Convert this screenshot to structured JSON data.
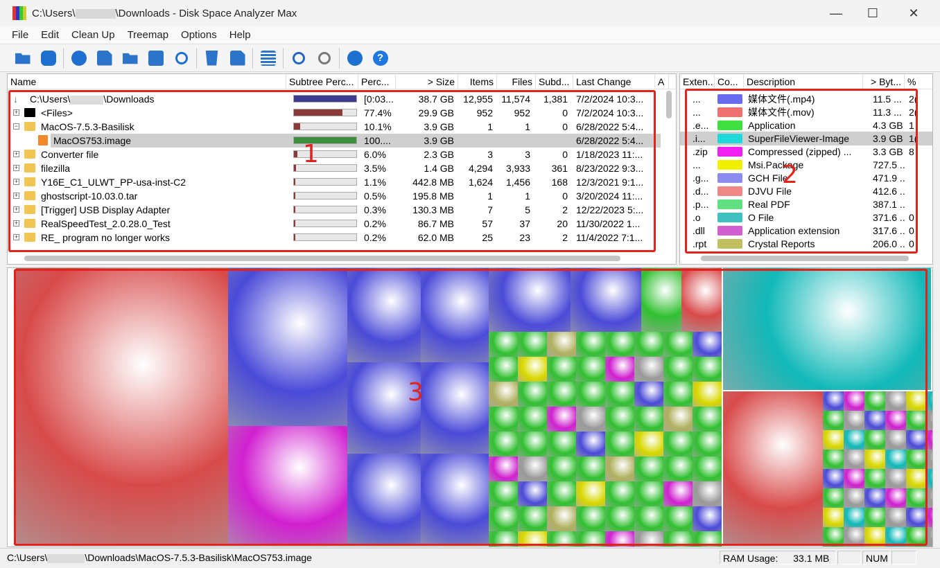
{
  "window": {
    "title_prefix": "C:\\Users\\",
    "title_suffix": "\\Downloads - Disk Space Analyzer Max",
    "minimize": "—",
    "maximize": "☐",
    "close": "✕"
  },
  "menu": [
    "File",
    "Edit",
    "Clean Up",
    "Treemap",
    "Options",
    "Help"
  ],
  "toolbar_icons": [
    "open-folder-icon",
    "refresh-icon",
    "play-icon",
    "copy-icon",
    "folder-search-icon",
    "console-icon",
    "reload-icon",
    "recycle-icon",
    "delete-file-icon",
    "list-icon",
    "zoom-in-icon",
    "zoom-out-icon",
    "like-icon",
    "help-icon"
  ],
  "tree": {
    "columns": [
      "Name",
      "Subtree Perc...",
      "Perc...",
      "> Size",
      "Items",
      "Files",
      "Subd...",
      "Last Change",
      "A"
    ],
    "rows": [
      {
        "name_prefix": "C:\\Users\\",
        "name_suffix": "\\Downloads",
        "perc": "[0:03...",
        "size": "38.7 GB",
        "items": "12,955",
        "files": "11,574",
        "subdirs": "1,381",
        "last": "7/2/2024  10:3...",
        "fill": 1.0,
        "fill_color": "#3b3b8f"
      },
      {
        "name": "<Files>",
        "perc": "77.4%",
        "size": "29.9 GB",
        "items": "952",
        "files": "952",
        "subdirs": "0",
        "last": "7/2/2024  10:3...",
        "fill": 0.774,
        "fill_color": "#8b3a3a"
      },
      {
        "name": "MacOS-7.5.3-Basilisk",
        "perc": "10.1%",
        "size": "3.9 GB",
        "items": "1",
        "files": "1",
        "subdirs": "0",
        "last": "6/28/2022  5:4...",
        "fill": 0.101,
        "fill_color": "#8b3a3a"
      },
      {
        "name": "MacOS753.image",
        "perc": "100....",
        "size": "3.9 GB",
        "items": "",
        "files": "",
        "subdirs": "",
        "last": "6/28/2022  5:4...",
        "fill": 1.0,
        "fill_color": "#3c8f3c"
      },
      {
        "name": "Converter file",
        "perc": "6.0%",
        "size": "2.3 GB",
        "items": "3",
        "files": "3",
        "subdirs": "0",
        "last": "1/18/2023  11:...",
        "fill": 0.06,
        "fill_color": "#8b3a3a"
      },
      {
        "name": "filezilla",
        "perc": "3.5%",
        "size": "1.4 GB",
        "items": "4,294",
        "files": "3,933",
        "subdirs": "361",
        "last": "8/23/2022  9:3...",
        "fill": 0.035,
        "fill_color": "#8b3a3a"
      },
      {
        "name": "Y16E_C1_ULWT_PP-usa-inst-C2",
        "perc": "1.1%",
        "size": "442.8 MB",
        "items": "1,624",
        "files": "1,456",
        "subdirs": "168",
        "last": "12/3/2021  9:1...",
        "fill": 0.011,
        "fill_color": "#8b3a3a"
      },
      {
        "name": "ghostscript-10.03.0.tar",
        "perc": "0.5%",
        "size": "195.8 MB",
        "items": "1",
        "files": "1",
        "subdirs": "0",
        "last": "3/20/2024  11:...",
        "fill": 0.005,
        "fill_color": "#8b3a3a"
      },
      {
        "name": "[Trigger] USB Display Adapter",
        "perc": "0.3%",
        "size": "130.3 MB",
        "items": "7",
        "files": "5",
        "subdirs": "2",
        "last": "12/22/2023  5:...",
        "fill": 0.003,
        "fill_color": "#8b3a3a"
      },
      {
        "name": "RealSpeedTest_2.0.28.0_Test",
        "perc": "0.2%",
        "size": "86.7 MB",
        "items": "57",
        "files": "37",
        "subdirs": "20",
        "last": "11/30/2022  1...",
        "fill": 0.002,
        "fill_color": "#8b3a3a"
      },
      {
        "name": "RE_ program no longer works",
        "perc": "0.2%",
        "size": "62.0 MB",
        "items": "25",
        "files": "23",
        "subdirs": "2",
        "last": "11/4/2022  7:1...",
        "fill": 0.002,
        "fill_color": "#8b3a3a"
      }
    ]
  },
  "extensions": {
    "columns": [
      "Exten...",
      "Co...",
      "Description",
      "> Byt...",
      "%"
    ],
    "rows": [
      {
        "ext": "...",
        "color": "#6a6af0",
        "desc": "媒体文件(.mp4)",
        "bytes": "11.5 ...",
        "pct": "2("
      },
      {
        "ext": "...",
        "color": "#f07070",
        "desc": "媒体文件(.mov)",
        "bytes": "11.3 ...",
        "pct": "2("
      },
      {
        "ext": ".e...",
        "color": "#40e040",
        "desc": "Application",
        "bytes": "4.3 GB",
        "pct": "1"
      },
      {
        "ext": ".i...",
        "color": "#20d8d8",
        "desc": "SuperFileViewer-Image",
        "bytes": "3.9 GB",
        "pct": "1("
      },
      {
        "ext": ".zip",
        "color": "#f020f0",
        "desc": "Compressed (zipped) ...",
        "bytes": "3.3 GB",
        "pct": "8"
      },
      {
        "ext": "...",
        "color": "#f0f000",
        "desc": "Msi.Package",
        "bytes": "727.5 ...",
        "pct": ""
      },
      {
        "ext": ".g...",
        "color": "#8c8cf0",
        "desc": "GCH File",
        "bytes": "471.9 ...",
        "pct": ""
      },
      {
        "ext": ".d...",
        "color": "#f08888",
        "desc": "DJVU File",
        "bytes": "412.6 ...",
        "pct": ""
      },
      {
        "ext": ".p...",
        "color": "#60e080",
        "desc": "Real PDF",
        "bytes": "387.1 ...",
        "pct": ""
      },
      {
        "ext": ".o",
        "color": "#40c0c0",
        "desc": "O File",
        "bytes": "371.6 ...",
        "pct": "0"
      },
      {
        "ext": ".dll",
        "color": "#d060d0",
        "desc": "Application extension",
        "bytes": "317.6 ...",
        "pct": "0"
      },
      {
        "ext": ".rpt",
        "color": "#c0c060",
        "desc": "Crystal Reports",
        "bytes": "206.0 ...",
        "pct": "0"
      }
    ]
  },
  "annotations": [
    "1",
    "2",
    "3"
  ],
  "status": {
    "path_prefix": "C:\\Users\\",
    "path_suffix": "\\Downloads\\MacOS-7.5.3-Basilisk\\MacOS753.image",
    "ram_label": "RAM Usage:",
    "ram_value": "33.1 MB",
    "num": "NUM"
  },
  "colors": {
    "highlight": "#e0231b",
    "selection": "#cfcfcf"
  }
}
